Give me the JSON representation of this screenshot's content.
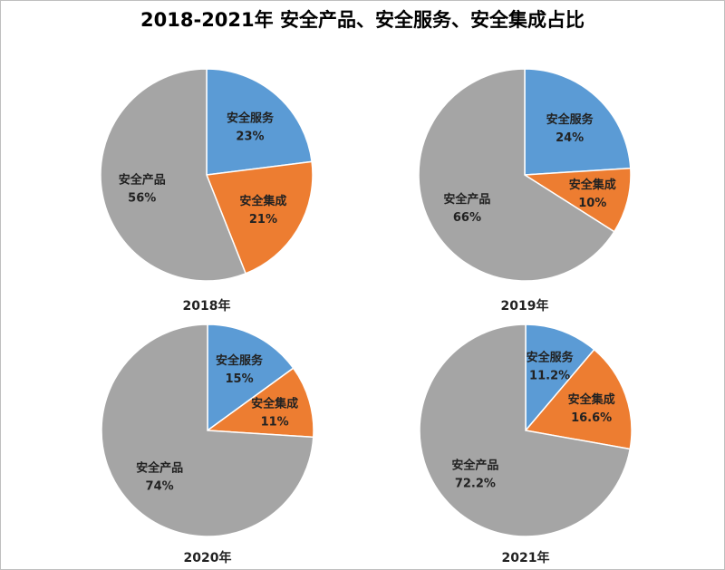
{
  "title": "2018-2021年 安全产品、安全服务、安全集成占比",
  "colors": {
    "安全服务": "#5b9bd5",
    "安全集成": "#ed7d31",
    "安全产品": "#a5a5a5"
  },
  "chart_data": [
    {
      "type": "pie",
      "title": "2018年",
      "slices": [
        {
          "label": "安全服务",
          "value": 23,
          "display": "23%"
        },
        {
          "label": "安全集成",
          "value": 21,
          "display": "21%"
        },
        {
          "label": "安全产品",
          "value": 56,
          "display": "56%"
        }
      ]
    },
    {
      "type": "pie",
      "title": "2019年",
      "slices": [
        {
          "label": "安全服务",
          "value": 24,
          "display": "24%"
        },
        {
          "label": "安全集成",
          "value": 10,
          "display": "10%"
        },
        {
          "label": "安全产品",
          "value": 66,
          "display": "66%"
        }
      ]
    },
    {
      "type": "pie",
      "title": "2020年",
      "slices": [
        {
          "label": "安全服务",
          "value": 15,
          "display": "15%"
        },
        {
          "label": "安全集成",
          "value": 11,
          "display": "11%"
        },
        {
          "label": "安全产品",
          "value": 74,
          "display": "74%"
        }
      ]
    },
    {
      "type": "pie",
      "title": "2021年",
      "slices": [
        {
          "label": "安全服务",
          "value": 11.2,
          "display": "11.2%"
        },
        {
          "label": "安全集成",
          "value": 16.6,
          "display": "16.6%"
        },
        {
          "label": "安全产品",
          "value": 72.2,
          "display": "72.2%"
        }
      ]
    }
  ]
}
